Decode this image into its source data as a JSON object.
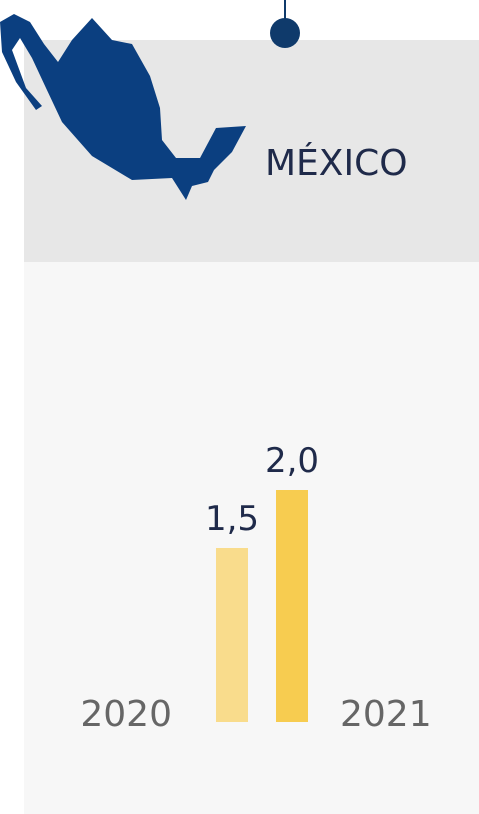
{
  "chart_data": {
    "type": "bar",
    "title": "MÉXICO",
    "categories": [
      "2020",
      "2021"
    ],
    "values": [
      1.5,
      2.0
    ],
    "value_labels": [
      "1,5",
      "2,0"
    ],
    "colors": [
      "#f9dc8c",
      "#f7cc50"
    ]
  }
}
